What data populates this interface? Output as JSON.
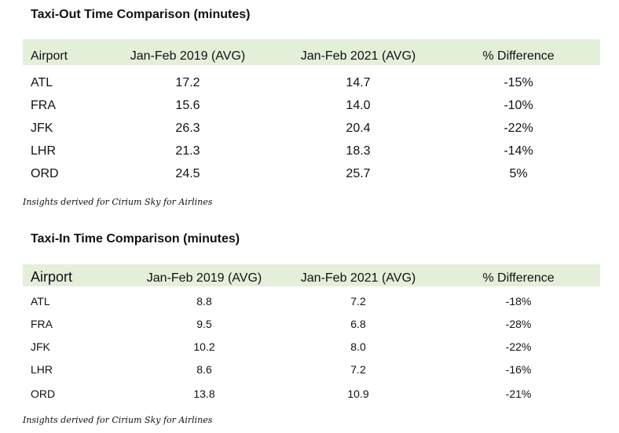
{
  "taxi_out": {
    "title": "Taxi-Out Time Comparison (minutes)",
    "headers": [
      "Airport",
      "Jan-Feb 2019 (AVG)",
      "Jan-Feb 2021 (AVG)",
      "% Difference"
    ],
    "rows": [
      [
        "ATL",
        "17.2",
        "14.7",
        "-15%"
      ],
      [
        "FRA",
        "15.6",
        "14.0",
        "-10%"
      ],
      [
        "JFK",
        "26.3",
        "20.4",
        "-22%"
      ],
      [
        "LHR",
        "21.3",
        "18.3",
        "-14%"
      ],
      [
        "ORD",
        "24.5",
        "25.7",
        "5%"
      ]
    ],
    "note": "Insights derived for Cirium Sky for Airlines"
  },
  "taxi_in": {
    "title": "Taxi-In Time Comparison (minutes)",
    "headers": [
      "Airport",
      "Jan-Feb 2019 (AVG)",
      "Jan-Feb 2021 (AVG)",
      "% Difference"
    ],
    "rows": [
      [
        "ATL",
        "8.8",
        "7.2",
        "-18%"
      ],
      [
        "FRA",
        "9.5",
        "6.8",
        "-28%"
      ],
      [
        "JFK",
        "10.2",
        "8.0",
        "-22%"
      ],
      [
        "LHR",
        "8.6",
        "7.2",
        "-16%"
      ],
      [
        "ORD",
        "13.8",
        "10.9",
        "-21%"
      ]
    ],
    "note": "Insights derived for Cirium Sky for Airlines"
  },
  "colors": {
    "header_bg": "#e4efda",
    "text": "#111111"
  }
}
